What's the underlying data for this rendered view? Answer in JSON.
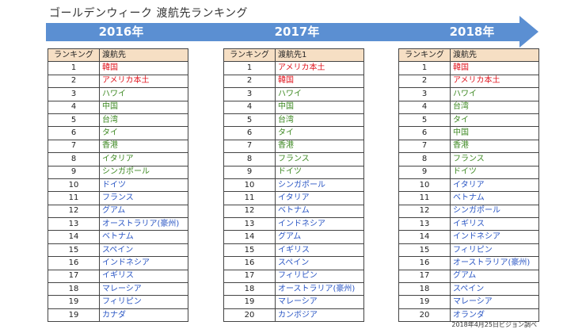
{
  "title": "ゴールデンウィーク 渡航先ランキング",
  "timeline": {
    "years": [
      "2016年",
      "2017年",
      "2018年"
    ],
    "color": "#5b8fd2"
  },
  "colors": {
    "header_bg": "#f6dfc4",
    "red": "#e0161f",
    "green": "#3f8a24",
    "blue": "#2a56c4"
  },
  "tables": [
    {
      "year": "2016年",
      "headers": [
        "ランキング",
        "渡航先"
      ],
      "rows": [
        {
          "rank": "1",
          "dest": "韓国",
          "color": "red"
        },
        {
          "rank": "2",
          "dest": "アメリカ本土",
          "color": "red"
        },
        {
          "rank": "3",
          "dest": "ハワイ",
          "color": "green"
        },
        {
          "rank": "4",
          "dest": "中国",
          "color": "green"
        },
        {
          "rank": "5",
          "dest": "台湾",
          "color": "green"
        },
        {
          "rank": "6",
          "dest": "タイ",
          "color": "green"
        },
        {
          "rank": "7",
          "dest": "香港",
          "color": "green"
        },
        {
          "rank": "8",
          "dest": "イタリア",
          "color": "green"
        },
        {
          "rank": "9",
          "dest": "シンガポール",
          "color": "green"
        },
        {
          "rank": "10",
          "dest": "ドイツ",
          "color": "blue"
        },
        {
          "rank": "11",
          "dest": "フランス",
          "color": "blue"
        },
        {
          "rank": "12",
          "dest": "グアム",
          "color": "blue"
        },
        {
          "rank": "13",
          "dest": "オーストラリア(豪州)",
          "color": "blue"
        },
        {
          "rank": "14",
          "dest": "ベトナム",
          "color": "blue"
        },
        {
          "rank": "15",
          "dest": "スペイン",
          "color": "blue"
        },
        {
          "rank": "16",
          "dest": "インドネシア",
          "color": "blue"
        },
        {
          "rank": "17",
          "dest": "イギリス",
          "color": "blue"
        },
        {
          "rank": "18",
          "dest": "マレーシア",
          "color": "blue"
        },
        {
          "rank": "19",
          "dest": "フィリピン",
          "color": "blue"
        },
        {
          "rank": "19",
          "dest": "カナダ",
          "color": "blue"
        }
      ]
    },
    {
      "year": "2017年",
      "headers": [
        "ランキング",
        "渡航先1"
      ],
      "rows": [
        {
          "rank": "1",
          "dest": "アメリカ本土",
          "color": "red"
        },
        {
          "rank": "2",
          "dest": "韓国",
          "color": "red"
        },
        {
          "rank": "3",
          "dest": "ハワイ",
          "color": "green"
        },
        {
          "rank": "4",
          "dest": "中国",
          "color": "green"
        },
        {
          "rank": "5",
          "dest": "台湾",
          "color": "green"
        },
        {
          "rank": "6",
          "dest": "タイ",
          "color": "green"
        },
        {
          "rank": "7",
          "dest": "香港",
          "color": "green"
        },
        {
          "rank": "8",
          "dest": "フランス",
          "color": "green"
        },
        {
          "rank": "9",
          "dest": "ドイツ",
          "color": "green"
        },
        {
          "rank": "10",
          "dest": "シンガポール",
          "color": "blue"
        },
        {
          "rank": "11",
          "dest": "イタリア",
          "color": "blue"
        },
        {
          "rank": "12",
          "dest": "ベトナム",
          "color": "blue"
        },
        {
          "rank": "13",
          "dest": "インドネシア",
          "color": "blue"
        },
        {
          "rank": "14",
          "dest": "グアム",
          "color": "blue"
        },
        {
          "rank": "15",
          "dest": "イギリス",
          "color": "blue"
        },
        {
          "rank": "16",
          "dest": "スペイン",
          "color": "blue"
        },
        {
          "rank": "17",
          "dest": "フィリピン",
          "color": "blue"
        },
        {
          "rank": "18",
          "dest": "オーストラリア(豪州)",
          "color": "blue"
        },
        {
          "rank": "19",
          "dest": "マレーシア",
          "color": "blue"
        },
        {
          "rank": "20",
          "dest": "カンボジア",
          "color": "blue"
        }
      ]
    },
    {
      "year": "2018年",
      "headers": [
        "ランキング",
        "渡航先"
      ],
      "rows": [
        {
          "rank": "1",
          "dest": "韓国",
          "color": "red"
        },
        {
          "rank": "2",
          "dest": "アメリカ本土",
          "color": "red"
        },
        {
          "rank": "3",
          "dest": "ハワイ",
          "color": "green"
        },
        {
          "rank": "4",
          "dest": "台湾",
          "color": "green"
        },
        {
          "rank": "5",
          "dest": "タイ",
          "color": "green"
        },
        {
          "rank": "6",
          "dest": "中国",
          "color": "green"
        },
        {
          "rank": "7",
          "dest": "香港",
          "color": "green"
        },
        {
          "rank": "8",
          "dest": "フランス",
          "color": "green"
        },
        {
          "rank": "9",
          "dest": "ドイツ",
          "color": "green"
        },
        {
          "rank": "10",
          "dest": "イタリア",
          "color": "blue"
        },
        {
          "rank": "11",
          "dest": "ベトナム",
          "color": "blue"
        },
        {
          "rank": "12",
          "dest": "シンガポール",
          "color": "blue"
        },
        {
          "rank": "13",
          "dest": "イギリス",
          "color": "blue"
        },
        {
          "rank": "14",
          "dest": "インドネシア",
          "color": "blue"
        },
        {
          "rank": "15",
          "dest": "フィリピン",
          "color": "blue"
        },
        {
          "rank": "16",
          "dest": "オーストラリア(豪州)",
          "color": "blue"
        },
        {
          "rank": "17",
          "dest": "グアム",
          "color": "blue"
        },
        {
          "rank": "18",
          "dest": "スペイン",
          "color": "blue"
        },
        {
          "rank": "19",
          "dest": "マレーシア",
          "color": "blue"
        },
        {
          "rank": "20",
          "dest": "オランダ",
          "color": "blue"
        }
      ]
    }
  ],
  "footnote": "2018年4月25日ビジョン調べ"
}
